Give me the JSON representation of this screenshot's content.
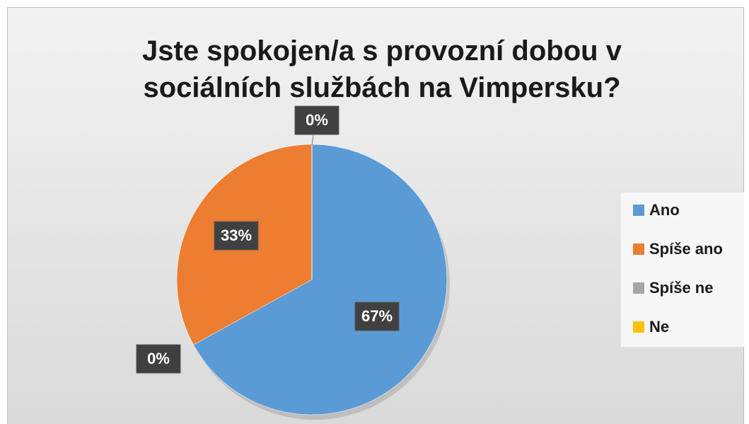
{
  "chart_data": {
    "type": "pie",
    "title": "Jste spokojen/a s provozní dobou v sociálních službách na Vimpersku?",
    "categories": [
      "Ano",
      "Spíše ano",
      "Spíše ne",
      "Ne"
    ],
    "values": [
      67,
      33,
      0,
      0
    ],
    "value_labels": [
      "67%",
      "33%",
      "0%",
      "0%"
    ],
    "colors": [
      "#5b9bd5",
      "#ed7d31",
      "#a5a5a5",
      "#ffc000"
    ],
    "legend": "right"
  }
}
